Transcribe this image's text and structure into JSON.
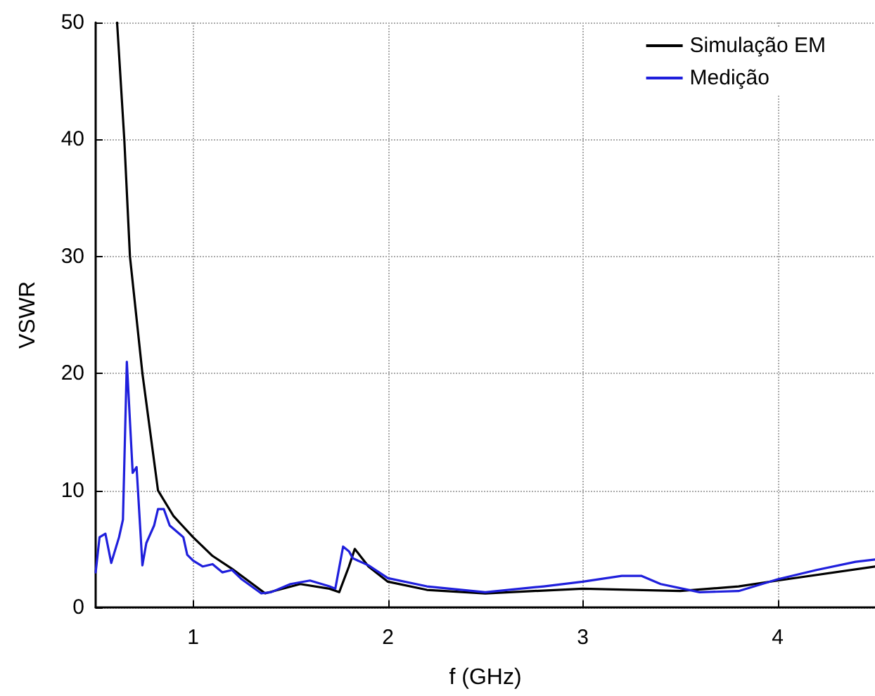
{
  "chart_data": {
    "type": "line",
    "xlabel": "f (GHz)",
    "ylabel": "VSWR",
    "xlim": [
      0.5,
      4.5
    ],
    "xticks": [
      1,
      2,
      3,
      4
    ],
    "ylim": [
      0,
      50
    ],
    "yticks": [
      0,
      10,
      20,
      30,
      40,
      50
    ],
    "grid": true,
    "legend": "top right",
    "marker": "none",
    "line_style": "solid",
    "series": [
      {
        "name": "Simulação EM",
        "color": "#000000",
        "x": [
          0.61,
          0.647,
          0.676,
          0.74,
          0.82,
          0.9,
          1.0,
          1.1,
          1.2,
          1.37,
          1.55,
          1.7,
          1.75,
          1.8,
          1.83,
          1.9,
          2.0,
          2.2,
          2.5,
          3.0,
          3.5,
          3.8,
          4.0,
          4.5
        ],
        "values": [
          50,
          40,
          30,
          20,
          10,
          7.8,
          6.0,
          4.4,
          3.3,
          1.2,
          2.0,
          1.6,
          1.3,
          3.5,
          5.0,
          3.5,
          2.2,
          1.5,
          1.2,
          1.6,
          1.4,
          1.8,
          2.3,
          3.5
        ]
      },
      {
        "name": "Medição",
        "color": "#1f1fdc",
        "x": [
          0.5,
          0.52,
          0.55,
          0.58,
          0.62,
          0.64,
          0.66,
          0.69,
          0.71,
          0.74,
          0.76,
          0.8,
          0.82,
          0.85,
          0.88,
          0.95,
          0.97,
          1.0,
          1.05,
          1.1,
          1.15,
          1.2,
          1.25,
          1.35,
          1.4,
          1.5,
          1.6,
          1.7,
          1.73,
          1.77,
          1.8,
          1.82,
          1.9,
          2.0,
          2.2,
          2.5,
          2.8,
          3.0,
          3.2,
          3.3,
          3.4,
          3.6,
          3.8,
          4.0,
          4.2,
          4.4,
          4.5
        ],
        "values": [
          3,
          6,
          6.3,
          3.8,
          6,
          7.5,
          21,
          11.5,
          12,
          3.6,
          5.5,
          7,
          8.4,
          8.4,
          7,
          6,
          4.5,
          4,
          3.5,
          3.7,
          3.0,
          3.2,
          2.4,
          1.2,
          1.3,
          2.0,
          2.3,
          1.8,
          1.6,
          5.2,
          4.8,
          4.2,
          3.6,
          2.5,
          1.8,
          1.3,
          1.8,
          2.2,
          2.7,
          2.7,
          2.0,
          1.3,
          1.4,
          2.4,
          3.2,
          3.9,
          4.1
        ]
      }
    ]
  }
}
